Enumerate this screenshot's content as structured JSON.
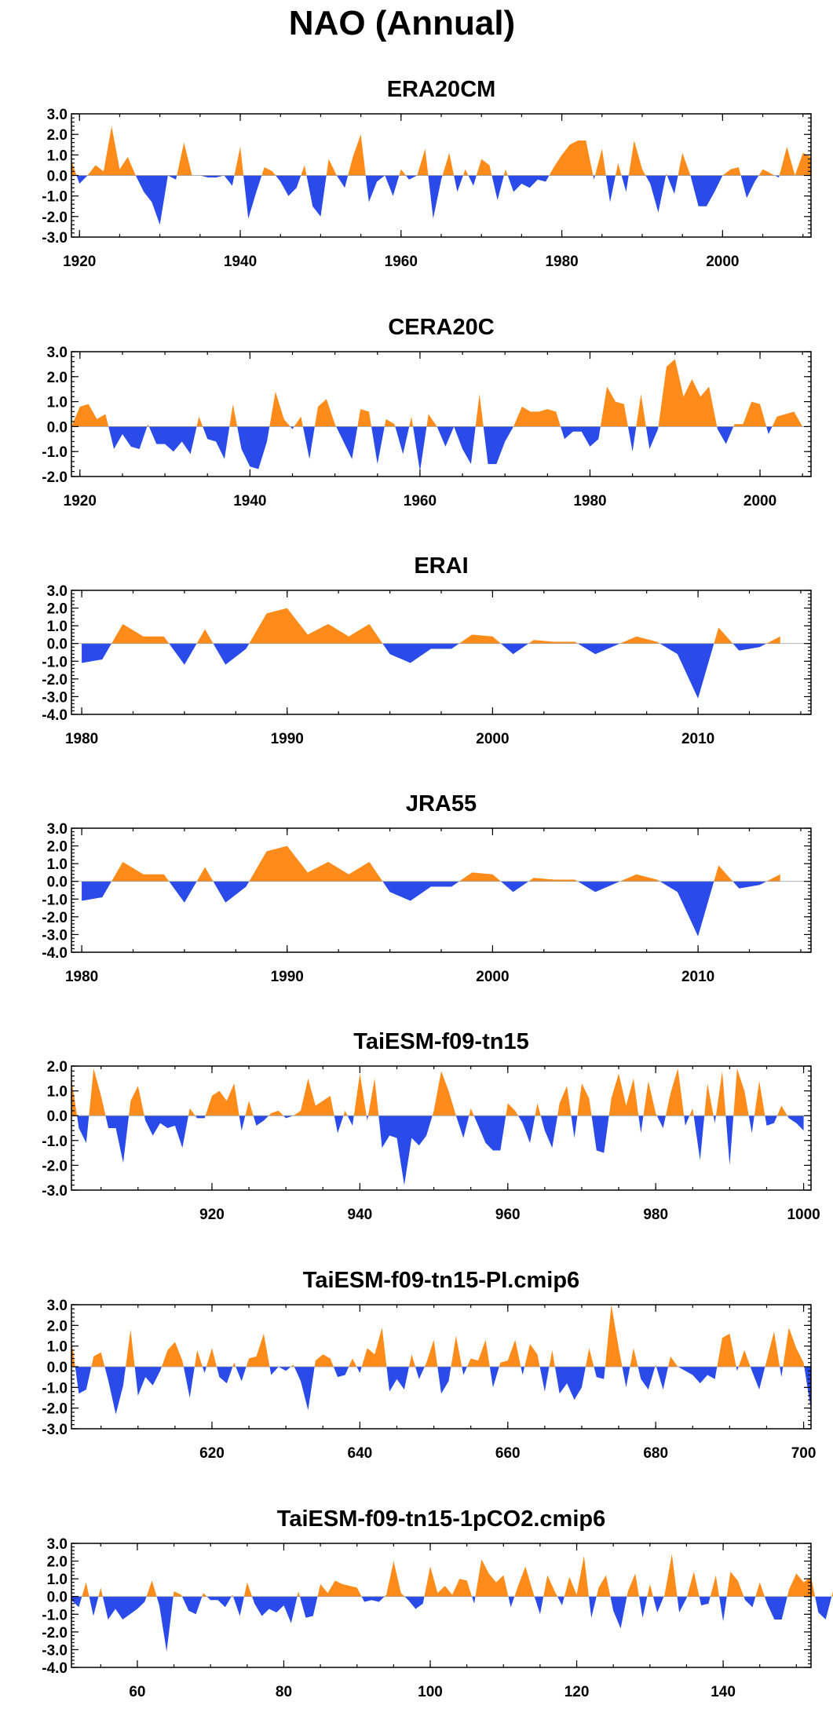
{
  "figure": {
    "title": "NAO (Annual)"
  },
  "colors": {
    "positive": "#ff8c1a",
    "negative": "#2a4bea",
    "frame": "#000000"
  },
  "chart_data": [
    {
      "type": "area",
      "title": "ERA20CM",
      "xlim": [
        1919,
        2011
      ],
      "ylim": [
        -3,
        3
      ],
      "xticks": [
        1920,
        1940,
        1960,
        1980,
        2000
      ],
      "yticks": [
        3,
        2,
        1,
        0,
        -1,
        -2,
        -3
      ],
      "ytick_labels": [
        "3.0",
        "2.0",
        "1.0",
        "0.0",
        "-1.0",
        "-2.0",
        "-3.0"
      ],
      "x_start": 1919,
      "values": [
        0.7,
        -0.4,
        0.0,
        0.5,
        0.2,
        2.4,
        0.3,
        0.9,
        0.0,
        -0.8,
        -1.3,
        -2.4,
        0.0,
        -0.2,
        1.6,
        0.0,
        0.0,
        -0.1,
        -0.1,
        0.0,
        -0.5,
        1.4,
        -2.1,
        -0.8,
        0.4,
        0.2,
        -0.3,
        -1.0,
        -0.6,
        0.5,
        -1.5,
        -2.0,
        0.8,
        0.0,
        -0.6,
        0.9,
        2.0,
        -1.3,
        -0.3,
        0.0,
        -1.0,
        0.3,
        -0.2,
        0.0,
        1.3,
        -2.1,
        -0.2,
        1.1,
        -0.8,
        0.3,
        -0.5,
        0.8,
        0.5,
        -1.2,
        0.3,
        -0.8,
        -0.4,
        -0.6,
        -0.2,
        -0.3,
        0.4,
        1.0,
        1.5,
        1.7,
        1.7,
        -0.2,
        1.3,
        -1.3,
        0.6,
        -0.8,
        1.7,
        0.3,
        -0.4,
        -1.8,
        0.1,
        -0.9,
        1.1,
        0.0,
        -1.5,
        -1.5,
        -0.8,
        0.0,
        0.3,
        0.4,
        -1.1,
        -0.3,
        0.3,
        0.1,
        -0.1,
        1.4,
        0.0,
        1.1,
        0.9
      ]
    },
    {
      "type": "area",
      "title": "CERA20C",
      "xlim": [
        1919,
        2006
      ],
      "ylim": [
        -2,
        3
      ],
      "xticks": [
        1920,
        1940,
        1960,
        1980,
        2000
      ],
      "yticks": [
        3,
        2,
        1,
        0,
        -1,
        -2
      ],
      "ytick_labels": [
        "3.0",
        "2.0",
        "1.0",
        "0.0",
        "-1.0",
        "-2.0"
      ],
      "x_start": 1919,
      "values": [
        0.0,
        0.8,
        0.9,
        0.3,
        0.5,
        -0.9,
        -0.3,
        -0.8,
        -0.9,
        0.1,
        -0.7,
        -0.7,
        -1.0,
        -0.6,
        -1.1,
        0.4,
        -0.5,
        -0.6,
        -1.3,
        0.9,
        -0.9,
        -1.6,
        -1.7,
        -0.6,
        1.4,
        0.3,
        -0.1,
        0.4,
        -1.3,
        0.8,
        1.1,
        0.1,
        -0.6,
        -1.3,
        0.7,
        0.6,
        -1.5,
        0.3,
        0.1,
        -1.1,
        0.4,
        -1.8,
        0.5,
        0.0,
        -0.8,
        0.0,
        -0.9,
        -1.5,
        1.3,
        -1.5,
        -1.5,
        -0.6,
        0.0,
        0.8,
        0.6,
        0.6,
        0.7,
        0.6,
        -0.5,
        -0.2,
        -0.2,
        -0.8,
        -0.5,
        1.6,
        1.0,
        0.9,
        -1.0,
        1.3,
        -0.9,
        -0.1,
        2.4,
        2.7,
        1.2,
        1.9,
        1.2,
        1.6,
        -0.1,
        -0.7,
        0.1,
        0.1,
        1.0,
        0.9,
        -0.3,
        0.4,
        0.5,
        0.6,
        0.0
      ]
    },
    {
      "type": "area",
      "title": "ERAI",
      "xlim": [
        1979.5,
        2015.5
      ],
      "ylim": [
        -4,
        3
      ],
      "xticks": [
        1980,
        1990,
        2000,
        2010
      ],
      "yticks": [
        3,
        2,
        1,
        0,
        -1,
        -2,
        -3,
        -4
      ],
      "ytick_labels": [
        "3.0",
        "2.0",
        "1.0",
        "0.0",
        "-1.0",
        "-2.0",
        "-3.0",
        "-4.0"
      ],
      "x_start": 1980,
      "values": [
        -1.1,
        -0.9,
        1.1,
        0.4,
        0.4,
        -1.2,
        0.8,
        -1.2,
        -0.3,
        1.7,
        2.0,
        0.5,
        1.1,
        0.4,
        1.1,
        -0.6,
        -1.1,
        -0.3,
        -0.3,
        0.5,
        0.4,
        -0.6,
        0.2,
        0.1,
        0.1,
        -0.6,
        -0.1,
        0.4,
        0.1,
        -0.6,
        -3.1,
        0.9,
        -0.4,
        -0.2,
        0.4
      ]
    },
    {
      "type": "area",
      "title": "JRA55",
      "xlim": [
        1979.5,
        2015.5
      ],
      "ylim": [
        -4,
        3
      ],
      "xticks": [
        1980,
        1990,
        2000,
        2010
      ],
      "yticks": [
        3,
        2,
        1,
        0,
        -1,
        -2,
        -3,
        -4
      ],
      "ytick_labels": [
        "3.0",
        "2.0",
        "1.0",
        "0.0",
        "-1.0",
        "-2.0",
        "-3.0",
        "-4.0"
      ],
      "x_start": 1980,
      "values": [
        -1.1,
        -0.9,
        1.1,
        0.4,
        0.4,
        -1.2,
        0.8,
        -1.2,
        -0.3,
        1.7,
        2.0,
        0.5,
        1.1,
        0.4,
        1.1,
        -0.6,
        -1.1,
        -0.3,
        -0.3,
        0.5,
        0.4,
        -0.6,
        0.2,
        0.1,
        0.1,
        -0.6,
        -0.1,
        0.4,
        0.1,
        -0.6,
        -3.1,
        0.9,
        -0.4,
        -0.2,
        0.4
      ]
    },
    {
      "type": "area",
      "title": "TaiESM-f09-tn15",
      "xlim": [
        901,
        1001
      ],
      "ylim": [
        -3,
        2
      ],
      "xticks": [
        920,
        940,
        960,
        980,
        1000
      ],
      "yticks": [
        2,
        1,
        0,
        -1,
        -2,
        -3
      ],
      "ytick_labels": [
        "2.0",
        "1.0",
        "0.0",
        "-1.0",
        "-2.0",
        "-3.0"
      ],
      "x_start": 901,
      "values": [
        1.5,
        -0.5,
        -1.1,
        1.9,
        0.8,
        -0.5,
        -0.5,
        -1.9,
        0.6,
        1.2,
        -0.2,
        -0.8,
        -0.3,
        -0.5,
        -0.4,
        -1.3,
        0.3,
        -0.1,
        -0.1,
        0.8,
        1.0,
        0.6,
        1.3,
        -0.6,
        0.6,
        -0.4,
        -0.2,
        0.1,
        0.2,
        -0.1,
        0.0,
        0.2,
        1.5,
        0.4,
        0.6,
        0.8,
        -0.7,
        0.2,
        -0.4,
        1.7,
        -0.2,
        1.5,
        -1.3,
        -0.8,
        -0.9,
        -2.8,
        -0.9,
        -1.2,
        -0.8,
        0.2,
        1.8,
        1.0,
        0.0,
        -0.9,
        0.3,
        -0.4,
        -1.1,
        -1.4,
        -1.4,
        0.5,
        0.2,
        -0.3,
        -1.1,
        0.5,
        -0.6,
        -1.3,
        0.5,
        1.2,
        -0.9,
        1.3,
        0.7,
        -1.4,
        -1.5,
        0.7,
        1.7,
        0.4,
        1.5,
        -0.7,
        1.4,
        0.1,
        -0.5,
        0.9,
        1.9,
        -0.4,
        0.3,
        -1.8,
        1.3,
        -0.3,
        1.8,
        -2.0,
        1.9,
        1.0,
        -0.7,
        1.4,
        -0.4,
        -0.3,
        0.4,
        -0.1,
        -0.3,
        -0.6
      ]
    },
    {
      "type": "area",
      "title": "TaiESM-f09-tn15-PI.cmip6",
      "xlim": [
        601,
        701
      ],
      "ylim": [
        -3,
        3
      ],
      "xticks": [
        620,
        640,
        660,
        680,
        700
      ],
      "yticks": [
        3,
        2,
        1,
        0,
        -1,
        -2,
        -3
      ],
      "ytick_labels": [
        "3.0",
        "2.0",
        "1.0",
        "0.0",
        "-1.0",
        "-2.0",
        "-3.0"
      ],
      "x_start": 601,
      "values": [
        1.3,
        -1.3,
        -1.1,
        0.5,
        0.7,
        -0.7,
        -2.3,
        -0.9,
        1.8,
        -1.4,
        -0.5,
        -0.9,
        -0.2,
        0.8,
        1.2,
        0.3,
        -1.5,
        0.8,
        -0.3,
        0.9,
        -0.5,
        -0.8,
        0.2,
        -0.7,
        0.4,
        0.5,
        1.6,
        -0.4,
        0.0,
        -0.2,
        0.1,
        -0.7,
        -2.1,
        0.3,
        0.6,
        0.4,
        -0.5,
        -0.4,
        0.4,
        -0.3,
        0.9,
        0.6,
        1.9,
        -1.2,
        -0.6,
        -1.1,
        0.6,
        -0.6,
        0.2,
        1.3,
        -1.3,
        -0.7,
        1.5,
        -0.4,
        0.4,
        0.3,
        1.3,
        -1.0,
        0.2,
        0.3,
        1.3,
        -0.4,
        1.1,
        0.6,
        -1.2,
        0.8,
        -1.3,
        -0.8,
        -1.6,
        -1.0,
        0.9,
        -0.5,
        -0.6,
        3.0,
        0.9,
        -1.0,
        0.9,
        -0.6,
        -1.1,
        0.1,
        -1.1,
        0.5,
        0.0,
        -0.2,
        -0.4,
        -0.8,
        -0.4,
        -0.6,
        1.4,
        1.6,
        -0.2,
        0.8,
        -0.2,
        -1.1,
        0.3,
        1.7,
        -0.5,
        1.9,
        0.9,
        0.2,
        -2.1
      ]
    },
    {
      "type": "area",
      "title": "TaiESM-f09-tn15-1pCO2.cmip6",
      "xlim": [
        51,
        152
      ],
      "ylim": [
        -4,
        3
      ],
      "xticks": [
        60,
        80,
        100,
        120,
        140
      ],
      "yticks": [
        3,
        2,
        1,
        0,
        -1,
        -2,
        -3,
        -4
      ],
      "ytick_labels": [
        "3.0",
        "2.0",
        "1.0",
        "0.0",
        "-1.0",
        "-2.0",
        "-3.0",
        "-4.0"
      ],
      "x_start": 51,
      "values": [
        -0.2,
        -0.6,
        0.8,
        -1.1,
        0.5,
        -1.3,
        -0.7,
        -1.3,
        -1.0,
        -0.7,
        -0.3,
        0.9,
        -0.5,
        -3.1,
        0.3,
        0.1,
        -0.8,
        -1.0,
        0.2,
        -0.2,
        -0.2,
        -0.6,
        0.1,
        -1.1,
        0.8,
        -0.4,
        -1.1,
        -0.7,
        -0.9,
        -0.5,
        -1.5,
        0.3,
        -1.2,
        -1.1,
        0.7,
        0.2,
        0.9,
        0.7,
        0.6,
        0.5,
        -0.3,
        -0.2,
        -0.3,
        0.1,
        2.0,
        0.2,
        -0.2,
        -0.7,
        -0.4,
        1.7,
        0.2,
        0.6,
        0.1,
        1.0,
        0.9,
        -0.4,
        2.1,
        1.3,
        0.8,
        1.2,
        -0.6,
        0.6,
        1.7,
        0.3,
        -1.0,
        1.2,
        0.3,
        -0.5,
        1.1,
        0.1,
        2.3,
        -1.2,
        0.5,
        1.2,
        -0.8,
        -1.8,
        0.3,
        1.3,
        -1.2,
        0.7,
        -0.9,
        0.1,
        2.4,
        -0.9,
        -0.1,
        1.4,
        -0.5,
        -0.4,
        1.2,
        -1.4,
        1.4,
        0.9,
        -0.2,
        -0.6,
        0.8,
        -0.4,
        -1.3,
        -1.3,
        0.4,
        1.3,
        0.8,
        1.1,
        -0.9,
        -1.3,
        0.3,
        0.2,
        0.1,
        -0.1,
        0.2
      ]
    }
  ]
}
